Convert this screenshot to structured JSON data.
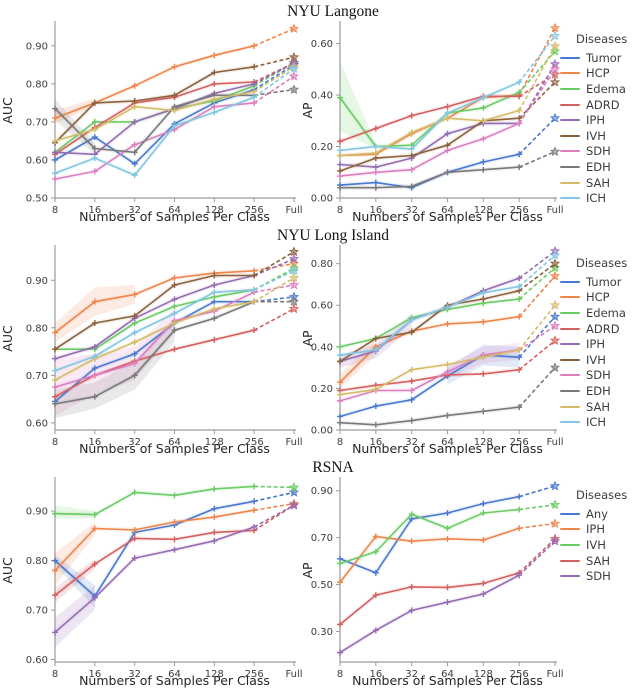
{
  "sections": [
    {
      "title": "NYU Langone",
      "legend_title": "Diseases"
    },
    {
      "title": "NYU Long Island",
      "legend_title": "Diseases"
    },
    {
      "title": "RSNA",
      "legend_title": "Diseases"
    }
  ],
  "axis": {
    "xlabel": "Numbers of Samples Per Class",
    "x_categories": [
      "8",
      "16",
      "32",
      "64",
      "128",
      "256",
      "Full"
    ]
  },
  "palette": {
    "blue": "#4878d0",
    "orange": "#ee854a",
    "green": "#6acc64",
    "red": "#d65f5f",
    "purple": "#956cb4",
    "brown": "#8c613c",
    "pink": "#dc7ec0",
    "gray": "#797979",
    "tan": "#d5bb67",
    "lightblue": "#82c6e2"
  },
  "chart_data": [
    {
      "type": "line",
      "section": "NYU Langone",
      "panel": "left",
      "xlabel": "Numbers of Samples Per Class",
      "ylabel": "AUC",
      "x_categories": [
        "8",
        "16",
        "32",
        "64",
        "128",
        "256",
        "Full"
      ],
      "ylim": [
        0.5,
        0.96
      ],
      "yticks": [
        "0.50",
        "0.60",
        "0.70",
        "0.80",
        "0.90"
      ],
      "series": [
        {
          "name": "Tumor",
          "color": "#4878d0",
          "values": [
            0.6,
            0.66,
            0.59,
            0.695,
            0.75,
            0.785,
            0.85
          ]
        },
        {
          "name": "HCP",
          "color": "#ee854a",
          "values": [
            0.71,
            0.75,
            0.795,
            0.845,
            0.875,
            0.9,
            0.945
          ],
          "band": [
            [
              0,
              0.695,
              0.73
            ],
            [
              1,
              0.74,
              0.762
            ]
          ]
        },
        {
          "name": "Edema",
          "color": "#6acc64",
          "values": [
            0.62,
            0.7,
            0.7,
            0.735,
            0.755,
            0.795,
            0.855
          ]
        },
        {
          "name": "ADRD",
          "color": "#d65f5f",
          "values": [
            0.615,
            0.685,
            0.75,
            0.765,
            0.8,
            0.805,
            0.855
          ]
        },
        {
          "name": "IPH",
          "color": "#956cb4",
          "values": [
            0.62,
            0.615,
            0.7,
            0.735,
            0.775,
            0.8,
            0.855
          ]
        },
        {
          "name": "IVH",
          "color": "#8c613c",
          "values": [
            0.645,
            0.75,
            0.755,
            0.77,
            0.83,
            0.845,
            0.87
          ]
        },
        {
          "name": "SDH",
          "color": "#dc7ec0",
          "values": [
            0.55,
            0.57,
            0.64,
            0.68,
            0.74,
            0.75,
            0.82
          ]
        },
        {
          "name": "EDH",
          "color": "#797979",
          "values": [
            0.735,
            0.63,
            0.62,
            0.74,
            0.77,
            0.77,
            0.785
          ],
          "band": [
            [
              0,
              0.705,
              0.76
            ],
            [
              1,
              0.615,
              0.645
            ]
          ]
        },
        {
          "name": "SAH",
          "color": "#d5bb67",
          "values": [
            0.65,
            0.68,
            0.74,
            0.73,
            0.76,
            0.78,
            0.845
          ]
        },
        {
          "name": "ICH",
          "color": "#82c6e2",
          "values": [
            0.565,
            0.605,
            0.56,
            0.69,
            0.725,
            0.765,
            0.84
          ]
        }
      ]
    },
    {
      "type": "line",
      "section": "NYU Langone",
      "panel": "right",
      "xlabel": "Numbers of Samples Per Class",
      "ylabel": "AP",
      "x_categories": [
        "8",
        "16",
        "32",
        "64",
        "128",
        "256",
        "Full"
      ],
      "ylim": [
        0.0,
        0.68
      ],
      "yticks": [
        "0.00",
        "0.20",
        "0.40",
        "0.60"
      ],
      "series": [
        {
          "name": "Tumor",
          "color": "#4878d0",
          "values": [
            0.05,
            0.06,
            0.04,
            0.1,
            0.14,
            0.17,
            0.31
          ]
        },
        {
          "name": "HCP",
          "color": "#ee854a",
          "values": [
            0.165,
            0.17,
            0.25,
            0.31,
            0.39,
            0.4,
            0.66
          ]
        },
        {
          "name": "Edema",
          "color": "#6acc64",
          "values": [
            0.39,
            0.2,
            0.205,
            0.33,
            0.35,
            0.41,
            0.57
          ],
          "band": [
            [
              0,
              0.26,
              0.53
            ],
            [
              1,
              0.19,
              0.215
            ]
          ]
        },
        {
          "name": "ADRD",
          "color": "#d65f5f",
          "values": [
            0.22,
            0.27,
            0.32,
            0.355,
            0.395,
            0.395,
            0.48
          ]
        },
        {
          "name": "IPH",
          "color": "#956cb4",
          "values": [
            0.13,
            0.12,
            0.155,
            0.25,
            0.29,
            0.29,
            0.52
          ]
        },
        {
          "name": "IVH",
          "color": "#8c613c",
          "values": [
            0.105,
            0.155,
            0.165,
            0.205,
            0.3,
            0.31,
            0.45
          ]
        },
        {
          "name": "SDH",
          "color": "#dc7ec0",
          "values": [
            0.085,
            0.1,
            0.11,
            0.185,
            0.23,
            0.29,
            0.5
          ]
        },
        {
          "name": "EDH",
          "color": "#797979",
          "values": [
            0.04,
            0.04,
            0.045,
            0.1,
            0.11,
            0.12,
            0.18
          ]
        },
        {
          "name": "SAH",
          "color": "#d5bb67",
          "values": [
            0.165,
            0.175,
            0.255,
            0.31,
            0.3,
            0.34,
            0.59
          ]
        },
        {
          "name": "ICH",
          "color": "#82c6e2",
          "values": [
            0.185,
            0.2,
            0.19,
            0.33,
            0.39,
            0.45,
            0.63
          ]
        }
      ]
    },
    {
      "type": "line",
      "section": "NYU Long Island",
      "panel": "left",
      "xlabel": "Numbers of Samples Per Class",
      "ylabel": "AUC",
      "x_categories": [
        "8",
        "16",
        "32",
        "64",
        "128",
        "256",
        "Full"
      ],
      "ylim": [
        0.585,
        0.97
      ],
      "yticks": [
        "0.60",
        "0.70",
        "0.80",
        "0.90"
      ],
      "series": [
        {
          "name": "Tumor",
          "color": "#4878d0",
          "values": [
            0.645,
            0.715,
            0.745,
            0.81,
            0.855,
            0.855,
            0.865
          ]
        },
        {
          "name": "HCP",
          "color": "#ee854a",
          "values": [
            0.79,
            0.855,
            0.87,
            0.905,
            0.915,
            0.92,
            0.935
          ],
          "band": [
            [
              0,
              0.77,
              0.81
            ],
            [
              1,
              0.825,
              0.885
            ],
            [
              2,
              0.85,
              0.89
            ]
          ]
        },
        {
          "name": "Edema",
          "color": "#6acc64",
          "values": [
            0.755,
            0.755,
            0.81,
            0.845,
            0.865,
            0.88,
            0.925
          ]
        },
        {
          "name": "ADRD",
          "color": "#d65f5f",
          "values": [
            0.655,
            0.7,
            0.73,
            0.755,
            0.775,
            0.795,
            0.84
          ]
        },
        {
          "name": "IPH",
          "color": "#956cb4",
          "values": [
            0.735,
            0.76,
            0.82,
            0.86,
            0.89,
            0.91,
            0.945
          ]
        },
        {
          "name": "IVH",
          "color": "#8c613c",
          "values": [
            0.755,
            0.81,
            0.825,
            0.89,
            0.91,
            0.91,
            0.96
          ]
        },
        {
          "name": "SDH",
          "color": "#dc7ec0",
          "values": [
            0.675,
            0.7,
            0.725,
            0.815,
            0.835,
            0.875,
            0.89
          ],
          "band": [
            [
              0,
              0.615,
              0.735
            ],
            [
              1,
              0.66,
              0.745
            ],
            [
              2,
              0.69,
              0.76
            ],
            [
              3,
              0.79,
              0.84
            ]
          ]
        },
        {
          "name": "EDH",
          "color": "#797979",
          "values": [
            0.64,
            0.655,
            0.7,
            0.795,
            0.82,
            0.855,
            0.855
          ],
          "band": [
            [
              0,
              0.61,
              0.67
            ],
            [
              1,
              0.63,
              0.685
            ],
            [
              2,
              0.67,
              0.73
            ],
            [
              3,
              0.77,
              0.82
            ]
          ]
        },
        {
          "name": "SAH",
          "color": "#d5bb67",
          "values": [
            0.69,
            0.735,
            0.77,
            0.81,
            0.84,
            0.855,
            0.905
          ]
        },
        {
          "name": "ICH",
          "color": "#82c6e2",
          "values": [
            0.71,
            0.74,
            0.79,
            0.83,
            0.875,
            0.88,
            0.92
          ]
        }
      ]
    },
    {
      "type": "line",
      "section": "NYU Long Island",
      "panel": "right",
      "xlabel": "Numbers of Samples Per Class",
      "ylabel": "AP",
      "x_categories": [
        "8",
        "16",
        "32",
        "64",
        "128",
        "256",
        "Full"
      ],
      "ylim": [
        0.0,
        0.88
      ],
      "yticks": [
        "0.00",
        "0.20",
        "0.40",
        "0.60",
        "0.80"
      ],
      "series": [
        {
          "name": "Tumor",
          "color": "#4878d0",
          "values": [
            0.065,
            0.115,
            0.145,
            0.26,
            0.36,
            0.35,
            0.545
          ],
          "band": [
            [
              3,
              0.22,
              0.3
            ],
            [
              4,
              0.31,
              0.41
            ],
            [
              5,
              0.3,
              0.4
            ]
          ]
        },
        {
          "name": "HCP",
          "color": "#ee854a",
          "values": [
            0.23,
            0.4,
            0.475,
            0.51,
            0.52,
            0.545,
            0.74
          ],
          "band": [
            [
              0,
              0.2,
              0.27
            ],
            [
              1,
              0.36,
              0.44
            ]
          ]
        },
        {
          "name": "Edema",
          "color": "#6acc64",
          "values": [
            0.4,
            0.44,
            0.54,
            0.58,
            0.61,
            0.63,
            0.78
          ]
        },
        {
          "name": "ADRD",
          "color": "#d65f5f",
          "values": [
            0.19,
            0.215,
            0.235,
            0.265,
            0.27,
            0.29,
            0.43
          ]
        },
        {
          "name": "IPH",
          "color": "#956cb4",
          "values": [
            0.33,
            0.38,
            0.53,
            0.59,
            0.67,
            0.73,
            0.86
          ],
          "band": [
            [
              0,
              0.3,
              0.36
            ],
            [
              1,
              0.345,
              0.415
            ],
            [
              2,
              0.49,
              0.56
            ]
          ]
        },
        {
          "name": "IVH",
          "color": "#8c613c",
          "values": [
            0.33,
            0.44,
            0.47,
            0.6,
            0.63,
            0.67,
            0.8
          ]
        },
        {
          "name": "SDH",
          "color": "#dc7ec0",
          "values": [
            0.14,
            0.19,
            0.19,
            0.28,
            0.36,
            0.385,
            0.5
          ],
          "band": [
            [
              3,
              0.25,
              0.31
            ],
            [
              4,
              0.32,
              0.4
            ],
            [
              5,
              0.34,
              0.42
            ]
          ]
        },
        {
          "name": "EDH",
          "color": "#797979",
          "values": [
            0.035,
            0.025,
            0.045,
            0.07,
            0.09,
            0.11,
            0.3
          ]
        },
        {
          "name": "SAH",
          "color": "#d5bb67",
          "values": [
            0.17,
            0.195,
            0.29,
            0.315,
            0.35,
            0.385,
            0.6
          ]
        },
        {
          "name": "ICH",
          "color": "#82c6e2",
          "values": [
            0.36,
            0.385,
            0.53,
            0.59,
            0.66,
            0.69,
            0.84
          ]
        }
      ]
    },
    {
      "type": "line",
      "section": "RSNA",
      "panel": "left",
      "xlabel": "Numbers of Samples Per Class",
      "ylabel": "AUC",
      "x_categories": [
        "8",
        "16",
        "32",
        "64",
        "128",
        "256",
        "Full"
      ],
      "ylim": [
        0.595,
        0.965
      ],
      "yticks": [
        "0.60",
        "0.70",
        "0.80",
        "0.90"
      ],
      "series": [
        {
          "name": "Any",
          "color": "#4878d0",
          "values": [
            0.8,
            0.728,
            0.857,
            0.872,
            0.905,
            0.92,
            0.938
          ],
          "band": [
            [
              0,
              0.79,
              0.812
            ],
            [
              1,
              0.705,
              0.75
            ]
          ]
        },
        {
          "name": "IPH",
          "color": "#ee854a",
          "values": [
            0.78,
            0.865,
            0.862,
            0.878,
            0.888,
            0.902,
            0.915
          ],
          "band": [
            [
              0,
              0.75,
              0.815
            ],
            [
              1,
              0.85,
              0.878
            ]
          ]
        },
        {
          "name": "IVH",
          "color": "#6acc64",
          "values": [
            0.895,
            0.893,
            0.938,
            0.932,
            0.945,
            0.95,
            0.948
          ],
          "band": [
            [
              0,
              0.885,
              0.912
            ],
            [
              1,
              0.885,
              0.9
            ]
          ]
        },
        {
          "name": "SAH",
          "color": "#d65f5f",
          "values": [
            0.73,
            0.793,
            0.845,
            0.843,
            0.857,
            0.861,
            0.912
          ],
          "band": [
            [
              0,
              0.715,
              0.745
            ],
            [
              1,
              0.782,
              0.803
            ]
          ]
        },
        {
          "name": "SDH",
          "color": "#956cb4",
          "values": [
            0.655,
            0.725,
            0.805,
            0.822,
            0.84,
            0.868,
            0.912
          ],
          "band": [
            [
              0,
              0.625,
              0.685
            ],
            [
              1,
              0.7,
              0.75
            ]
          ]
        }
      ]
    },
    {
      "type": "line",
      "section": "RSNA",
      "panel": "right",
      "xlabel": "Numbers of Samples Per Class",
      "ylabel": "AP",
      "x_categories": [
        "8",
        "16",
        "32",
        "64",
        "128",
        "256",
        "Full"
      ],
      "ylim": [
        0.17,
        0.95
      ],
      "yticks": [
        "0.30",
        "0.50",
        "0.70",
        "0.90"
      ],
      "series": [
        {
          "name": "Any",
          "color": "#4878d0",
          "values": [
            0.61,
            0.55,
            0.78,
            0.805,
            0.845,
            0.875,
            0.92
          ]
        },
        {
          "name": "IPH",
          "color": "#ee854a",
          "values": [
            0.51,
            0.705,
            0.685,
            0.695,
            0.69,
            0.74,
            0.76
          ]
        },
        {
          "name": "IVH",
          "color": "#6acc64",
          "values": [
            0.59,
            0.64,
            0.8,
            0.74,
            0.805,
            0.82,
            0.84
          ]
        },
        {
          "name": "SAH",
          "color": "#d65f5f",
          "values": [
            0.33,
            0.455,
            0.49,
            0.488,
            0.505,
            0.55,
            0.695
          ]
        },
        {
          "name": "SDH",
          "color": "#956cb4",
          "values": [
            0.21,
            0.305,
            0.39,
            0.425,
            0.46,
            0.54,
            0.685
          ]
        }
      ]
    }
  ]
}
